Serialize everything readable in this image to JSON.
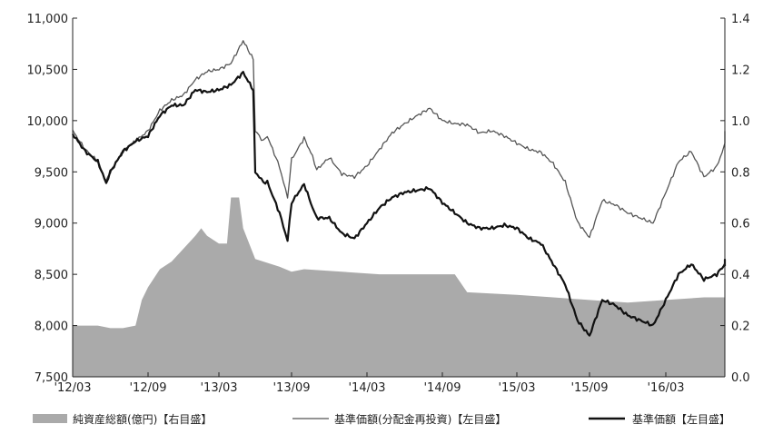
{
  "chart_data": {
    "type": "line",
    "x_ticks": [
      "'12/03",
      "'12/09",
      "'13/03",
      "'13/09",
      "'14/03",
      "'14/09",
      "'15/03",
      "'15/09",
      "'16/03"
    ],
    "y_left": {
      "min": 7500,
      "max": 11000,
      "ticks": [
        "7,500",
        "8,000",
        "8,500",
        "9,000",
        "9,500",
        "10,000",
        "10,500",
        "11,000"
      ]
    },
    "y_right": {
      "min": 0.0,
      "max": 1.4,
      "ticks": [
        "0.0",
        "0.2",
        "0.4",
        "0.6",
        "0.8",
        "1.0",
        "1.2",
        "1.4"
      ]
    },
    "legend_position": "bottom",
    "grid": false,
    "series": [
      {
        "name": "純資産総額(億円)【右目盛】",
        "kind": "area",
        "axis": "right",
        "color": "#aaaaaa",
        "points": [
          [
            "2012-03",
            0.2
          ],
          [
            "2012-04",
            0.2
          ],
          [
            "2012-05",
            0.2
          ],
          [
            "2012-06",
            0.19
          ],
          [
            "2012-07",
            0.19
          ],
          [
            "2012-08",
            0.2
          ],
          [
            "2012-08-15",
            0.3
          ],
          [
            "2012-09",
            0.35
          ],
          [
            "2012-10",
            0.42
          ],
          [
            "2012-11",
            0.45
          ],
          [
            "2012-12",
            0.5
          ],
          [
            "2013-01",
            0.55
          ],
          [
            "2013-01-15",
            0.58
          ],
          [
            "2013-02",
            0.55
          ],
          [
            "2013-03",
            0.52
          ],
          [
            "2013-03-20",
            0.52
          ],
          [
            "2013-04",
            0.7
          ],
          [
            "2013-04-20",
            0.7
          ],
          [
            "2013-05",
            0.58
          ],
          [
            "2013-06",
            0.46
          ],
          [
            "2013-08",
            0.43
          ],
          [
            "2013-09",
            0.41
          ],
          [
            "2013-10",
            0.42
          ],
          [
            "2014-01",
            0.41
          ],
          [
            "2014-04",
            0.4
          ],
          [
            "2014-08",
            0.4
          ],
          [
            "2014-10",
            0.4
          ],
          [
            "2014-11",
            0.33
          ],
          [
            "2015-03",
            0.32
          ],
          [
            "2015-06",
            0.31
          ],
          [
            "2015-09",
            0.3
          ],
          [
            "2015-12",
            0.29
          ],
          [
            "2016-03",
            0.3
          ],
          [
            "2016-06",
            0.31
          ]
        ]
      },
      {
        "name": "基準価額(分配金再投資)【左目盛】",
        "kind": "line",
        "axis": "left",
        "color": "#555555",
        "points": [
          [
            "2012-03",
            9900
          ],
          [
            "2012-04",
            9720
          ],
          [
            "2012-05",
            9600
          ],
          [
            "2012-05-20",
            9410
          ],
          [
            "2012-06",
            9500
          ],
          [
            "2012-07",
            9700
          ],
          [
            "2012-08",
            9800
          ],
          [
            "2012-09",
            9900
          ],
          [
            "2012-10",
            10100
          ],
          [
            "2012-11",
            10200
          ],
          [
            "2012-12",
            10250
          ],
          [
            "2013-01",
            10400
          ],
          [
            "2013-02",
            10480
          ],
          [
            "2013-03",
            10500
          ],
          [
            "2013-04",
            10560
          ],
          [
            "2013-05",
            10780
          ],
          [
            "2013-05-25",
            10600
          ],
          [
            "2013-06",
            9900
          ],
          [
            "2013-06-20",
            9800
          ],
          [
            "2013-07",
            9850
          ],
          [
            "2013-08",
            9550
          ],
          [
            "2013-08-20",
            9250
          ],
          [
            "2013-09",
            9620
          ],
          [
            "2013-10",
            9830
          ],
          [
            "2013-10-20",
            9650
          ],
          [
            "2013-11",
            9520
          ],
          [
            "2013-12",
            9640
          ],
          [
            "2014-01",
            9480
          ],
          [
            "2014-02",
            9450
          ],
          [
            "2014-03",
            9560
          ],
          [
            "2014-04",
            9720
          ],
          [
            "2014-05",
            9880
          ],
          [
            "2014-06",
            9970
          ],
          [
            "2014-07",
            10050
          ],
          [
            "2014-08",
            10120
          ],
          [
            "2014-09",
            10000
          ],
          [
            "2014-10",
            9970
          ],
          [
            "2014-11",
            9960
          ],
          [
            "2014-12",
            9880
          ],
          [
            "2015-01",
            9900
          ],
          [
            "2015-02",
            9850
          ],
          [
            "2015-03",
            9780
          ],
          [
            "2015-04",
            9720
          ],
          [
            "2015-05",
            9690
          ],
          [
            "2015-06",
            9580
          ],
          [
            "2015-07",
            9400
          ],
          [
            "2015-08",
            9010
          ],
          [
            "2015-09",
            8860
          ],
          [
            "2015-10",
            9220
          ],
          [
            "2015-11",
            9180
          ],
          [
            "2015-12",
            9100
          ],
          [
            "2016-01",
            9050
          ],
          [
            "2016-02",
            9000
          ],
          [
            "2016-03",
            9300
          ],
          [
            "2016-04",
            9600
          ],
          [
            "2016-05",
            9700
          ],
          [
            "2016-06",
            9450
          ],
          [
            "2016-07",
            9550
          ],
          [
            "2016-08",
            9880
          ],
          [
            "2016-08-20",
            9800
          ]
        ]
      },
      {
        "name": "基準価額【左目盛】",
        "kind": "line",
        "axis": "left",
        "color": "#111111",
        "points": [
          [
            "2012-03",
            9870
          ],
          [
            "2012-04",
            9700
          ],
          [
            "2012-05",
            9600
          ],
          [
            "2012-05-20",
            9390
          ],
          [
            "2012-06",
            9500
          ],
          [
            "2012-07",
            9700
          ],
          [
            "2012-08",
            9800
          ],
          [
            "2012-09",
            9850
          ],
          [
            "2012-10",
            10050
          ],
          [
            "2012-11",
            10150
          ],
          [
            "2012-12",
            10150
          ],
          [
            "2013-01",
            10300
          ],
          [
            "2013-02",
            10280
          ],
          [
            "2013-03",
            10300
          ],
          [
            "2013-04",
            10350
          ],
          [
            "2013-05",
            10470
          ],
          [
            "2013-05-25",
            10300
          ],
          [
            "2013-06",
            9500
          ],
          [
            "2013-06-20",
            9400
          ],
          [
            "2013-07",
            9400
          ],
          [
            "2013-08",
            9100
          ],
          [
            "2013-08-20",
            8830
          ],
          [
            "2013-09",
            9200
          ],
          [
            "2013-10",
            9380
          ],
          [
            "2013-10-20",
            9150
          ],
          [
            "2013-11",
            9050
          ],
          [
            "2013-12",
            9050
          ],
          [
            "2014-01",
            8900
          ],
          [
            "2014-02",
            8850
          ],
          [
            "2014-03",
            9000
          ],
          [
            "2014-04",
            9150
          ],
          [
            "2014-05",
            9250
          ],
          [
            "2014-06",
            9300
          ],
          [
            "2014-07",
            9320
          ],
          [
            "2014-08",
            9340
          ],
          [
            "2014-09",
            9200
          ],
          [
            "2014-10",
            9100
          ],
          [
            "2014-11",
            9000
          ],
          [
            "2014-12",
            8950
          ],
          [
            "2015-01",
            8950
          ],
          [
            "2015-02",
            8980
          ],
          [
            "2015-03",
            8950
          ],
          [
            "2015-04",
            8850
          ],
          [
            "2015-05",
            8800
          ],
          [
            "2015-06",
            8600
          ],
          [
            "2015-07",
            8400
          ],
          [
            "2015-08",
            8050
          ],
          [
            "2015-09",
            7900
          ],
          [
            "2015-10",
            8250
          ],
          [
            "2015-11",
            8200
          ],
          [
            "2015-12",
            8100
          ],
          [
            "2016-01",
            8050
          ],
          [
            "2016-02",
            8000
          ],
          [
            "2016-03",
            8250
          ],
          [
            "2016-04",
            8500
          ],
          [
            "2016-05",
            8600
          ],
          [
            "2016-06",
            8450
          ],
          [
            "2016-07",
            8500
          ],
          [
            "2016-08",
            8650
          ],
          [
            "2016-08-20",
            8580
          ]
        ]
      }
    ]
  }
}
